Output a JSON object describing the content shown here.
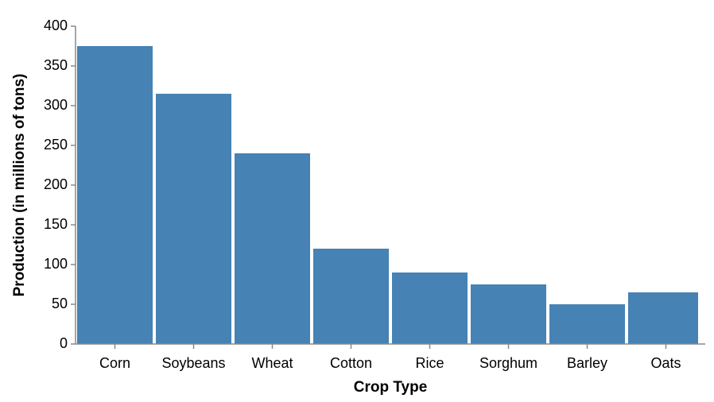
{
  "chart_data": {
    "type": "bar",
    "categories": [
      "Corn",
      "Soybeans",
      "Wheat",
      "Cotton",
      "Rice",
      "Sorghum",
      "Barley",
      "Oats"
    ],
    "values": [
      375,
      315,
      240,
      120,
      90,
      75,
      50,
      65
    ],
    "xlabel": "Crop Type",
    "ylabel": "Production (in millions of tons)",
    "ylim": [
      0,
      400
    ],
    "yticks": [
      0,
      50,
      100,
      150,
      200,
      250,
      300,
      350,
      400
    ],
    "grid": false,
    "legend": "none",
    "bar_color": "#4682b4",
    "axis_color": "#888888"
  }
}
